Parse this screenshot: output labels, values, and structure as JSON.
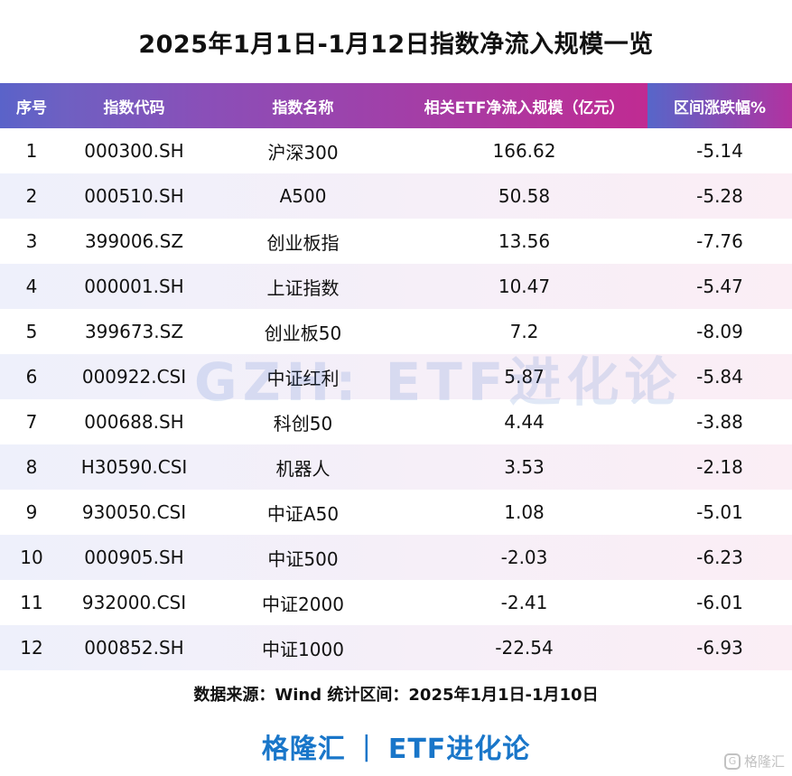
{
  "title": "2025年1月1日-1月12日指数净流入规模一览",
  "headers": [
    "序号",
    "指数代码",
    "指数名称",
    "相关ETF净流入规模（亿元）",
    "区间涨跌幅%"
  ],
  "rows": [
    [
      "1",
      "000300.SH",
      "沪深300",
      "166.62",
      "-5.14"
    ],
    [
      "2",
      "000510.SH",
      "A500",
      "50.58",
      "-5.28"
    ],
    [
      "3",
      "399006.SZ",
      "创业板指",
      "13.56",
      "-7.76"
    ],
    [
      "4",
      "000001.SH",
      "上证指数",
      "10.47",
      "-5.47"
    ],
    [
      "5",
      "399673.SZ",
      "创业板50",
      "7.2",
      "-8.09"
    ],
    [
      "6",
      "000922.CSI",
      "中证红利",
      "5.87",
      "-5.84"
    ],
    [
      "7",
      "000688.SH",
      "科创50",
      "4.44",
      "-3.88"
    ],
    [
      "8",
      "H30590.CSI",
      "机器人",
      "3.53",
      "-2.18"
    ],
    [
      "9",
      "930050.CSI",
      "中证A50",
      "1.08",
      "-5.01"
    ],
    [
      "10",
      "000905.SH",
      "中证500",
      "-2.03",
      "-6.23"
    ],
    [
      "11",
      "932000.CSI",
      "中证2000",
      "-2.41",
      "-6.01"
    ],
    [
      "12",
      "000852.SH",
      "中证1000",
      "-22.54",
      "-6.93"
    ]
  ],
  "source": "数据来源：Wind 统计区间：2025年1月1日-1月10日",
  "brand": {
    "left": "格隆汇",
    "separator": "|",
    "right": "ETF进化论"
  },
  "watermark": "GZH: ETF进化论",
  "corner_logo": {
    "icon": "G",
    "text": "格隆汇"
  },
  "colors": {
    "header_start": "#5a63c9",
    "header_end": "#c02b92",
    "brand_blue": "#1976c9",
    "alt_row": "#f3eff9"
  }
}
